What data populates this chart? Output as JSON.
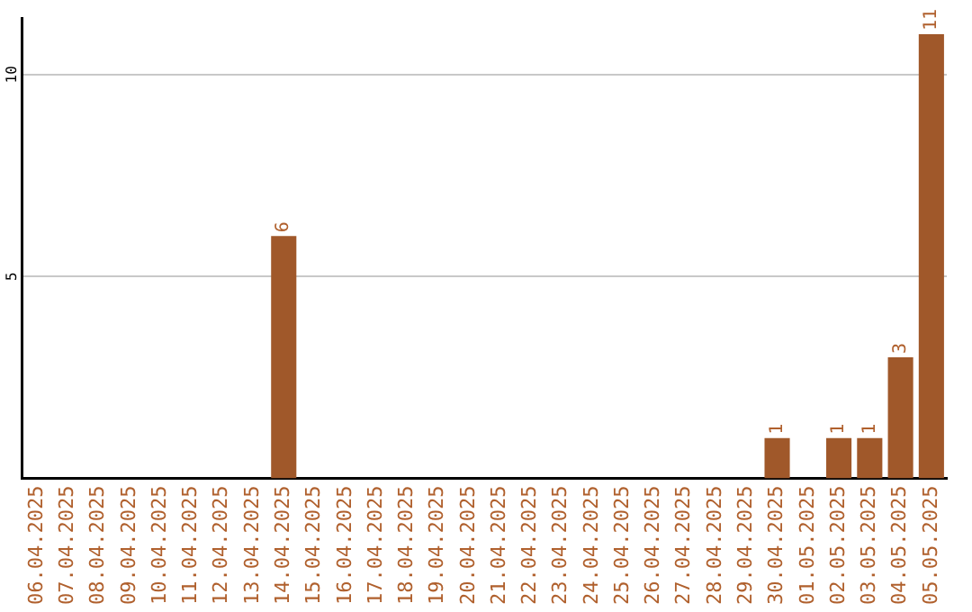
{
  "chart_data": {
    "type": "bar",
    "categories": [
      "06.04.2025",
      "07.04.2025",
      "08.04.2025",
      "09.04.2025",
      "10.04.2025",
      "11.04.2025",
      "12.04.2025",
      "13.04.2025",
      "14.04.2025",
      "15.04.2025",
      "16.04.2025",
      "17.04.2025",
      "18.04.2025",
      "19.04.2025",
      "20.04.2025",
      "21.04.2025",
      "22.04.2025",
      "23.04.2025",
      "24.04.2025",
      "25.04.2025",
      "26.04.2025",
      "27.04.2025",
      "28.04.2025",
      "29.04.2025",
      "30.04.2025",
      "01.05.2025",
      "02.05.2025",
      "03.05.2025",
      "04.05.2025",
      "05.05.2025"
    ],
    "values": [
      0,
      0,
      0,
      0,
      0,
      0,
      0,
      0,
      6,
      0,
      0,
      0,
      0,
      0,
      0,
      0,
      0,
      0,
      0,
      0,
      0,
      0,
      0,
      0,
      1,
      0,
      1,
      1,
      3,
      11
    ],
    "value_labels": [
      null,
      null,
      null,
      null,
      null,
      null,
      null,
      null,
      "6",
      null,
      null,
      null,
      null,
      null,
      null,
      null,
      null,
      null,
      null,
      null,
      null,
      null,
      null,
      null,
      "1",
      null,
      "1",
      "1",
      "3",
      "11"
    ],
    "color": "#a0582a",
    "ylim": [
      0,
      11.4
    ],
    "yticks": [
      5,
      10
    ],
    "grid": "y",
    "legend": false
  }
}
